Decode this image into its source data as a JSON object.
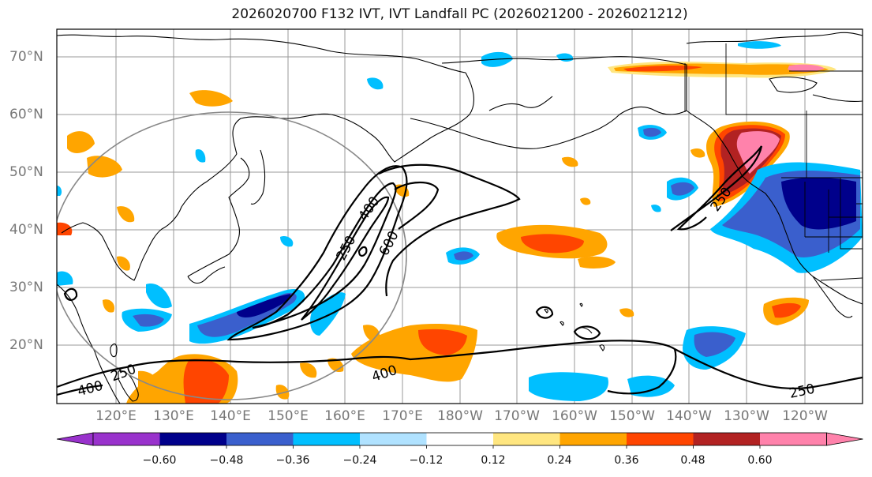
{
  "title": "2026020700 F132 IVT, IVT Landfall PC (2026021200 - 2026021212)",
  "latitude_labels": [
    "70°N",
    "60°N",
    "50°N",
    "40°N",
    "30°N",
    "20°N"
  ],
  "longitude_labels": [
    "120°E",
    "130°E",
    "140°E",
    "150°E",
    "160°E",
    "170°E",
    "180°W",
    "170°W",
    "160°W",
    "150°W",
    "140°W",
    "130°W",
    "120°W"
  ],
  "contour_labels": [
    "250",
    "400",
    "600",
    "400",
    "250",
    "400",
    "250",
    "250",
    "250"
  ],
  "colorbar": {
    "ticks": [
      "−0.60",
      "−0.48",
      "−0.36",
      "−0.24",
      "−0.12",
      "0.12",
      "0.24",
      "0.36",
      "0.48",
      "0.60"
    ],
    "colors": [
      "#9932cc",
      "#00008b",
      "#3a5fcd",
      "#00bfff",
      "#b0e2ff",
      "#ffffff",
      "#ffe680",
      "#ffa500",
      "#ff4500",
      "#b22222",
      "#ff82ab"
    ]
  },
  "palette": {
    "land_line": "#000000",
    "grid": "#999999",
    "contour": "#000000",
    "circle": "#888888"
  }
}
